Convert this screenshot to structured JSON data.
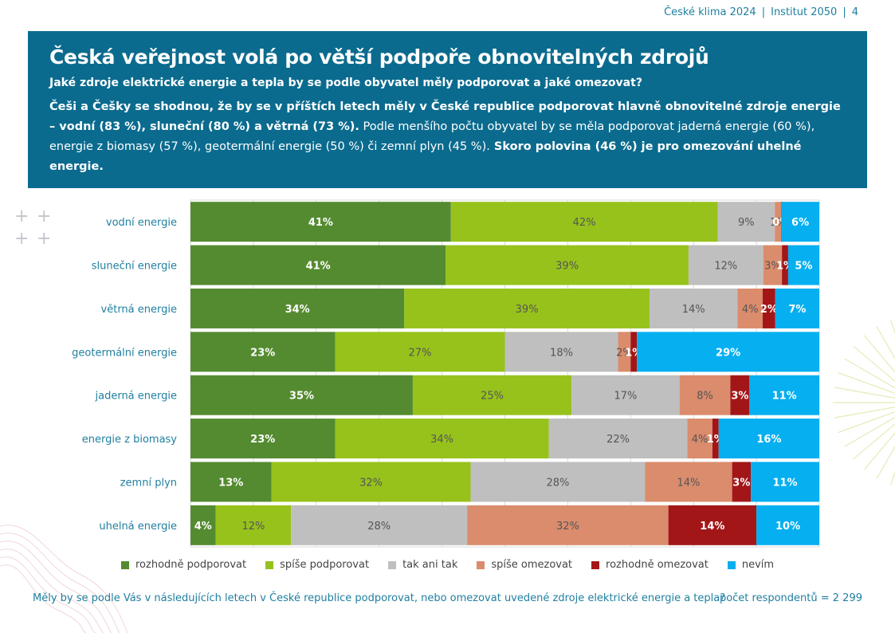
{
  "topbar": {
    "report": "České klima 2024",
    "org": "Institut 2050",
    "page": "4"
  },
  "header": {
    "title": "Česká veřejnost volá po větší podpoře obnovitelných zdrojů",
    "subtitle": "Jaké zdroje elektrické energie a tepla by se podle obyvatel měly podporovat a jaké omezovat?",
    "body_bold1": "Češi a Češky se shodnou, že by se v příštích letech měly v České republice podporovat hlavně obnovitelné zdroje energie – vodní (83 %), sluneční (80 %) a větrná (73 %).",
    "body_normal": " Podle menšího počtu obyvatel by se měla podporovat jaderná energie (60 %), energie z biomasy (57 %), geotermální energie (50 %) či zemní plyn (45 %).",
    "body_bold2": " Skoro polovina (46 %) je pro omezování uhelné energie."
  },
  "chart_data": {
    "type": "bar",
    "orientation": "horizontal-stacked-100",
    "categories": [
      "vodní energie",
      "sluneční energie",
      "větrná energie",
      "geotermální energie",
      "jaderná energie",
      "energie z biomasy",
      "zemní plyn",
      "uhelná energie"
    ],
    "series": [
      {
        "name": "rozhodně podporovat",
        "color": "#548b30",
        "label_color": "#ffffff",
        "values": [
          41,
          41,
          34,
          23,
          35,
          23,
          13,
          4
        ]
      },
      {
        "name": "spíše podporovat",
        "color": "#97c21c",
        "label_color": "#555555",
        "values": [
          42,
          39,
          39,
          27,
          25,
          34,
          32,
          12
        ]
      },
      {
        "name": "tak ani tak",
        "color": "#bfbfbf",
        "label_color": "#555555",
        "values": [
          9,
          12,
          14,
          18,
          17,
          22,
          28,
          28
        ]
      },
      {
        "name": "spíše omezovat",
        "color": "#da8c6c",
        "label_color": "#555555",
        "values": [
          1,
          3,
          4,
          2,
          8,
          4,
          14,
          32
        ]
      },
      {
        "name": "rozhodně omezovat",
        "color": "#a31618",
        "label_color": "#ffffff",
        "values": [
          0,
          1,
          2,
          1,
          3,
          1,
          3,
          14
        ]
      },
      {
        "name": "nevím",
        "color": "#05aff0",
        "label_color": "#ffffff",
        "values": [
          6,
          5,
          7,
          29,
          11,
          16,
          11,
          10
        ]
      }
    ],
    "value_suffix": "%",
    "xlim": [
      0,
      100
    ],
    "legend_position": "bottom"
  },
  "footer": {
    "question": "Měly by se podle Vás v následujících letech v České republice podporovat, nebo omezovat uvedené zdroje elektrické energie a tepla?",
    "respondents": "počet respondentů = 2 299"
  },
  "decor": {
    "plus": "+"
  }
}
